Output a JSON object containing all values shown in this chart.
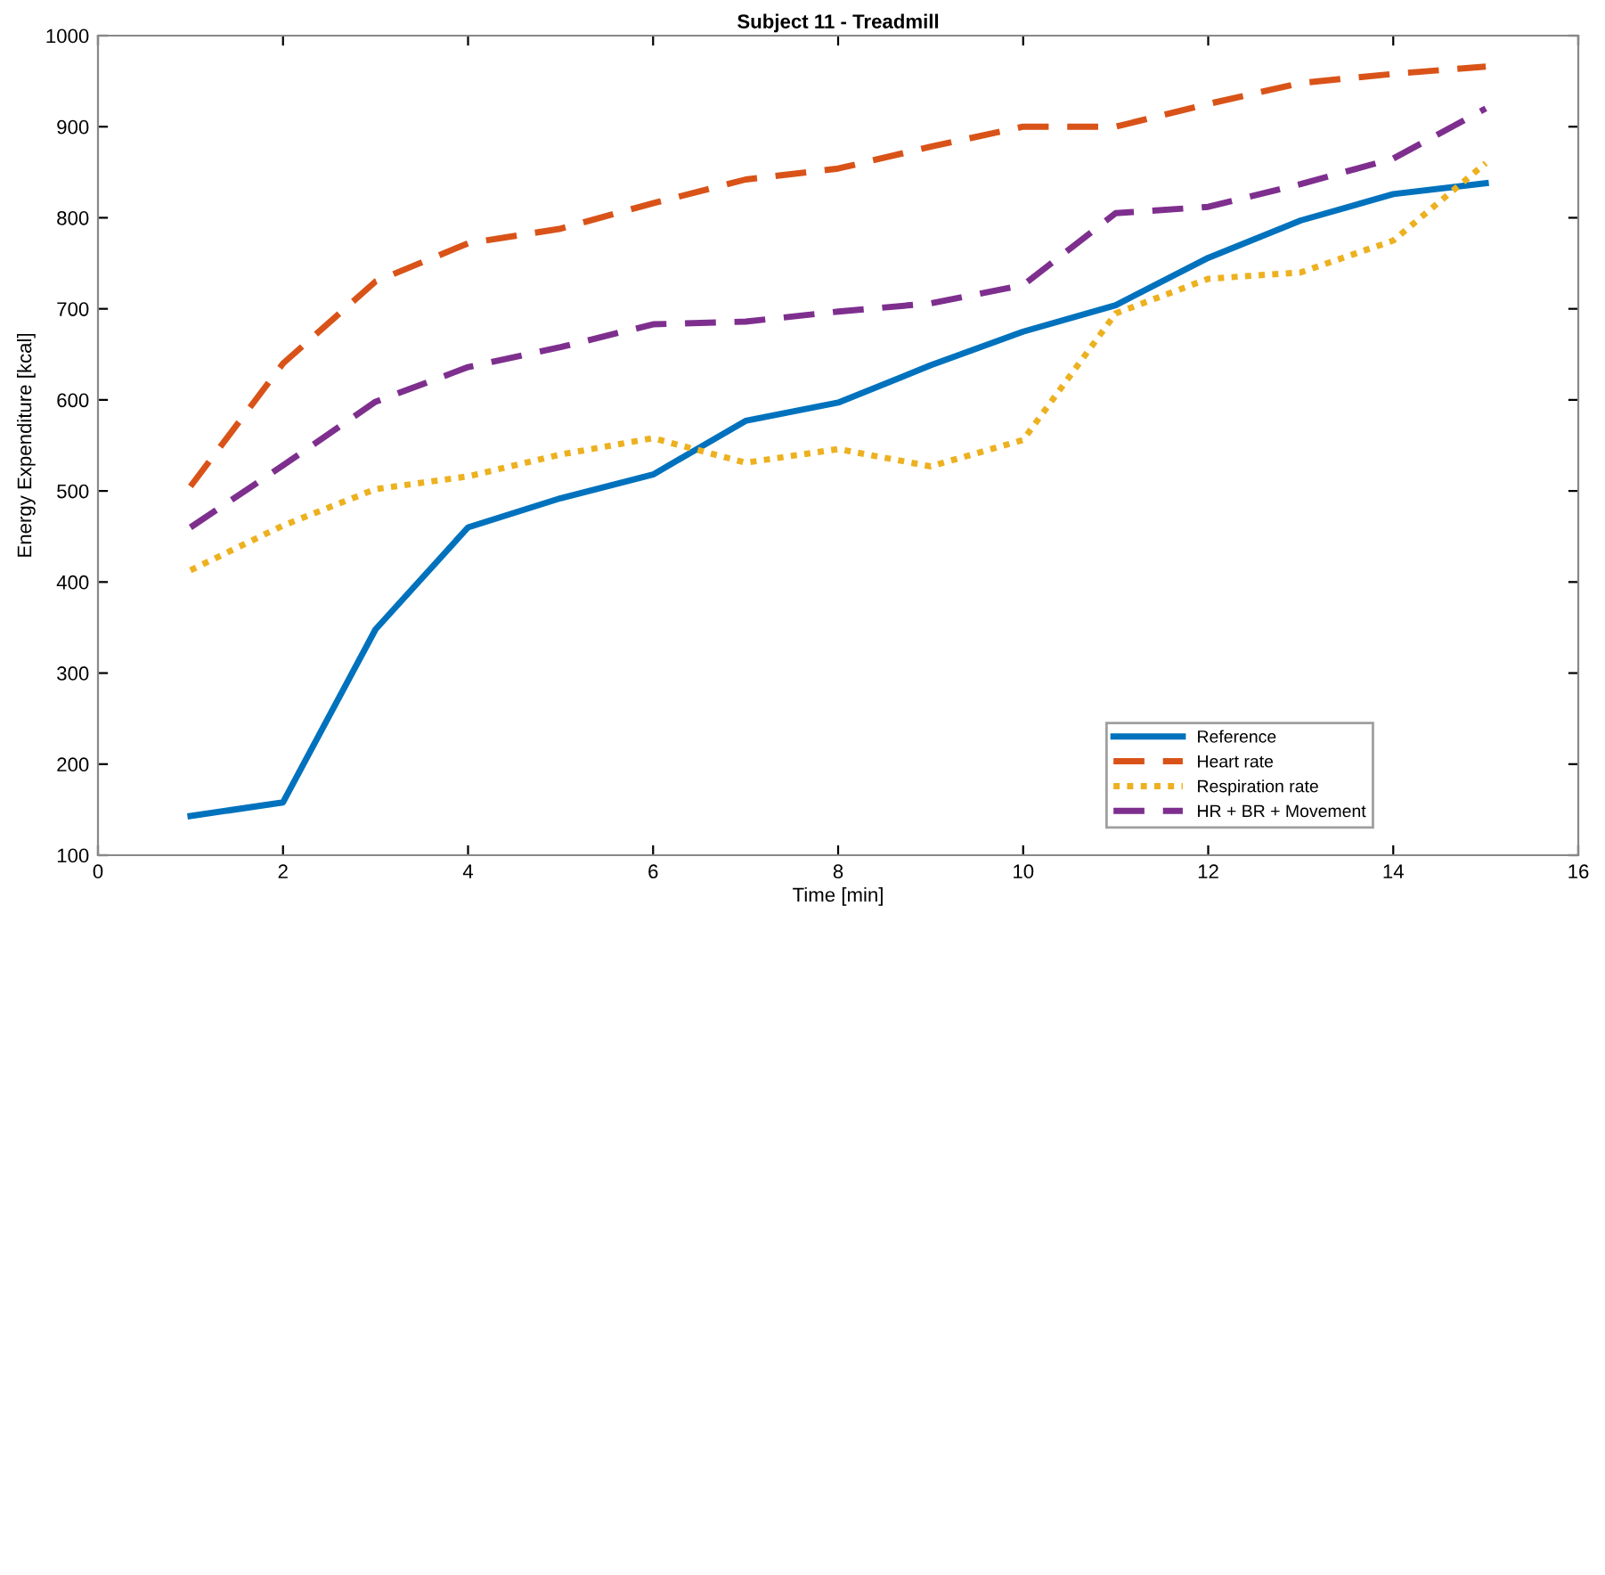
{
  "chart_data": {
    "type": "line",
    "title": "Subject 11 - Treadmill",
    "xlabel": "Time [min]",
    "ylabel": "Energy Expenditure [kcal]",
    "x": [
      1,
      2,
      3,
      4,
      5,
      6,
      7,
      8,
      9,
      10,
      11,
      12,
      13,
      14,
      15
    ],
    "series": [
      {
        "name": "Reference",
        "color": "#0072bd",
        "line_style": "solid",
        "values": [
          143,
          158,
          348,
          460,
          492,
          518,
          577,
          597,
          638,
          675,
          704,
          756,
          797,
          826,
          838
        ]
      },
      {
        "name": "Heart rate",
        "color": "#d95319",
        "line_style": "dashed",
        "values": [
          505,
          640,
          730,
          772,
          788,
          816,
          842,
          854,
          878,
          900,
          900,
          925,
          948,
          958,
          966
        ]
      },
      {
        "name": "Respiration rate",
        "color": "#edb120",
        "line_style": "dotted",
        "values": [
          413,
          462,
          502,
          516,
          540,
          558,
          531,
          546,
          527,
          556,
          695,
          733,
          740,
          775,
          860
        ]
      },
      {
        "name": "HR + BR + Movement",
        "color": "#7e2f8e",
        "line_style": "dashed",
        "values": [
          460,
          528,
          598,
          636,
          658,
          683,
          686,
          697,
          706,
          726,
          805,
          812,
          837,
          865,
          920
        ]
      }
    ],
    "xlim": [
      0,
      16
    ],
    "xticks": [
      0,
      2,
      4,
      6,
      8,
      10,
      12,
      14,
      16
    ],
    "ylim": [
      100,
      1000
    ],
    "yticks": [
      100,
      200,
      300,
      400,
      500,
      600,
      700,
      800,
      900,
      1000
    ],
    "grid": false,
    "legend": "bottom right",
    "marker": "none"
  }
}
